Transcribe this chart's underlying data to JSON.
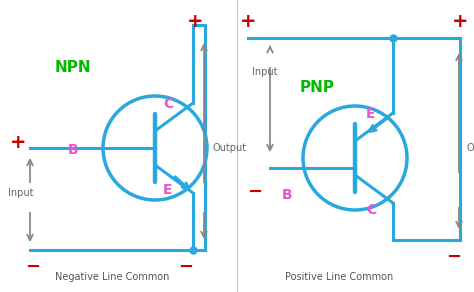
{
  "bg_color": "#ffffff",
  "line_color": "#29a8e0",
  "label_color": "#e855d0",
  "type_color": "#00bb00",
  "pm_color": "#cc0000",
  "arrow_color": "#888888",
  "divider_color": "#cccccc",
  "line_width": 2.2,
  "npn_label": "NPN",
  "pnp_label": "PNP",
  "bottom_label_npn": "Negative Line Common",
  "bottom_label_pnp": "Positive Line Common"
}
